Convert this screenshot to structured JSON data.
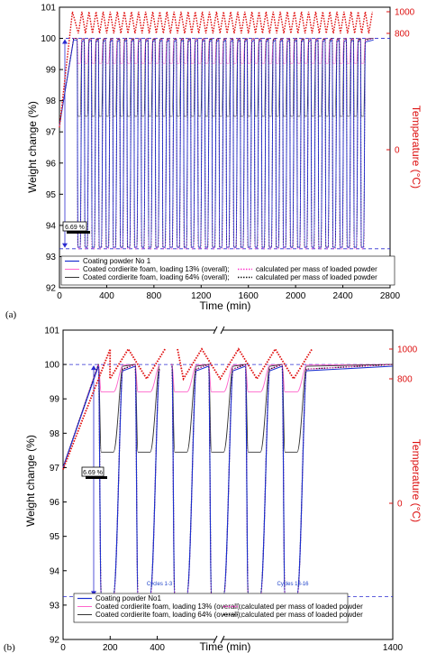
{
  "colors": {
    "powder": "#1a2fd0",
    "foam13": "#ff66cc",
    "foam13_calc": "#ff33cc",
    "foam64": "#333333",
    "foam64_calc": "#111111",
    "temperature": "#e01010",
    "ref_line": "#2a2ad0"
  },
  "chart_data": [
    {
      "type": "line",
      "panel_label": "(a)",
      "xlabel": "Time (min)",
      "ylabel": "Weight change (%)",
      "y2label": "Temperature (°C)",
      "xlim": [
        0,
        2800
      ],
      "ylim": [
        92,
        101
      ],
      "x_ticks": [
        "0",
        "400",
        "800",
        "1200",
        "1600",
        "2000",
        "2400",
        "2800"
      ],
      "y_ticks": [
        "92",
        "93",
        "94",
        "95",
        "96",
        "97",
        "98",
        "99",
        "100",
        "101"
      ],
      "y2_ticks": [
        "0",
        "800",
        "1000"
      ],
      "annotation": "6.69 %",
      "reference_lines": {
        "upper": 100.0,
        "lower": 93.25
      },
      "legend": [
        {
          "label": "Coating powder No 1",
          "series": "powder"
        },
        {
          "label": "Coated cordierite foam, loading  13% (overall);",
          "series": "foam13"
        },
        {
          "label": "calculated per mass of loaded powder",
          "series": "foam13_calc"
        },
        {
          "label": "Coated cordierite foam, loading  64% (overall);",
          "series": "foam64"
        },
        {
          "label": "calculated per mass of loaded powder",
          "series": "foam64_calc"
        }
      ],
      "series": [
        {
          "name": "Coating powder No 1",
          "key": "powder",
          "cycle_period_min": 60,
          "start_min": 140,
          "end_min": 2640,
          "high": 99.95,
          "low": 93.3
        },
        {
          "name": "Coated cordierite foam, loading  13% (overall);",
          "key": "foam13",
          "cycle_period_min": 60,
          "start_min": 140,
          "end_min": 2640,
          "high": 100.0,
          "low": 99.2
        },
        {
          "name": "Coated cordierite foam, loading  64% (overall);",
          "key": "foam64",
          "cycle_period_min": 60,
          "start_min": 140,
          "end_min": 2640,
          "high": 100.0,
          "low": 97.5
        },
        {
          "name": "calculated per mass of loaded powder",
          "key": "foam64_calc",
          "cycle_period_min": 60,
          "start_min": 140,
          "end_min": 2640,
          "high": 100.0,
          "low": 93.3
        },
        {
          "name": "Temperature",
          "key": "temperature",
          "cycle_period_min": 60,
          "high_c": 1000,
          "low_c": 800
        }
      ]
    },
    {
      "type": "line",
      "panel_label": "(b)",
      "xlabel": "Time (min)",
      "ylabel": "Weight change (%)",
      "y2label": "Temperature (°C)",
      "xlim": [
        0,
        1400
      ],
      "ylim": [
        92,
        101
      ],
      "x_ticks": [
        "0",
        "200",
        "400",
        "1400"
      ],
      "y_ticks": [
        "92",
        "93",
        "94",
        "95",
        "96",
        "97",
        "98",
        "99",
        "100",
        "101"
      ],
      "y2_ticks": [
        "0",
        "800",
        "1000"
      ],
      "annotation": "6.69 %",
      "cycles_labels": [
        "Cycles 1-3",
        "Cycles 13-16"
      ],
      "reference_lines": {
        "upper": 100.0,
        "lower": 93.25
      },
      "legend": [
        {
          "label": "Coating powder No1",
          "series": "powder"
        },
        {
          "label": "Coated cordierite foam, loading  13% (overall);",
          "series": "foam13"
        },
        {
          "label": "calculated per mass of loaded powder",
          "series": "foam13_calc"
        },
        {
          "label": "Coated cordierite foam, loading  64% (overall);",
          "series": "foam64"
        },
        {
          "label": "calculated per mass of loaded powder",
          "series": "foam64_calc"
        }
      ],
      "series": [
        {
          "name": "Coating powder No1",
          "key": "powder",
          "cycle_period_min": 60,
          "high": 99.95,
          "low": 93.3
        },
        {
          "name": "Coated cordierite foam, loading  13% (overall);",
          "key": "foam13",
          "cycle_period_min": 60,
          "high": 100.0,
          "low": 99.2
        },
        {
          "name": "Coated cordierite foam, loading  64% (overall);",
          "key": "foam64",
          "cycle_period_min": 60,
          "high": 100.0,
          "low": 97.45
        },
        {
          "name": "calculated per mass of loaded powder",
          "key": "foam64_calc",
          "cycle_period_min": 60,
          "high": 100.0,
          "low": 93.3
        },
        {
          "name": "Temperature",
          "key": "temperature",
          "high_c": 1000,
          "low_c": 800
        }
      ]
    }
  ]
}
